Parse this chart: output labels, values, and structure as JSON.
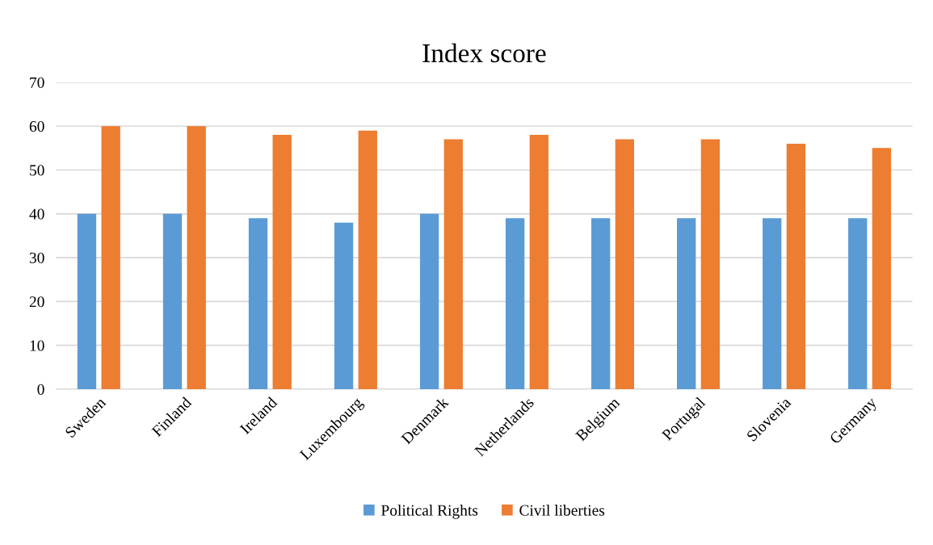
{
  "chart_data": {
    "type": "bar",
    "title": "Index score",
    "categories": [
      "Sweden",
      "Finland",
      "Ireland",
      "Luxembourg",
      "Denmark",
      "Netherlands",
      "Belgium",
      "Portugal",
      "Slovenia",
      "Germany"
    ],
    "series": [
      {
        "name": "Political Rights",
        "color": "#5b9bd5",
        "values": [
          40,
          40,
          39,
          38,
          40,
          39,
          39,
          39,
          39,
          39
        ]
      },
      {
        "name": "Civil liberties",
        "color": "#ed7d31",
        "values": [
          60,
          60,
          58,
          59,
          57,
          58,
          57,
          57,
          56,
          55
        ]
      }
    ],
    "ylim": [
      0,
      70
    ],
    "yticks": [
      0,
      10,
      20,
      30,
      40,
      50,
      60,
      70
    ],
    "grid": "y",
    "legend": "bottom"
  }
}
